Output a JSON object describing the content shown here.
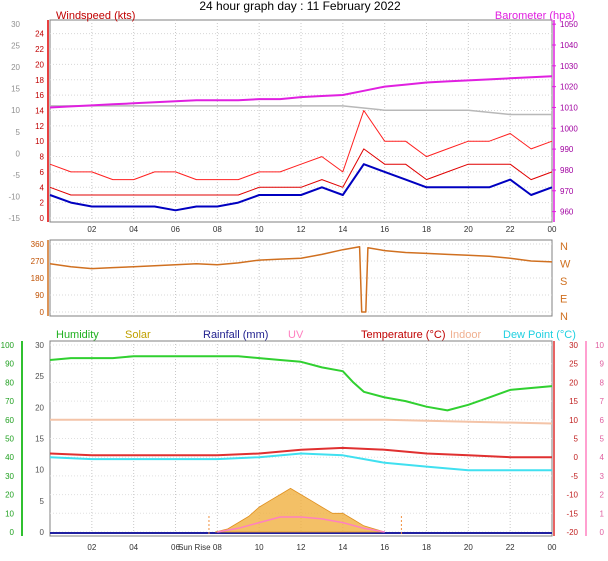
{
  "title": "24 hour graph day : 11 February 2022",
  "colors": {
    "wind": "#e00000",
    "gust": "#ff2020",
    "windAvg": "#0000c0",
    "baro": "#e020e0",
    "temp": "#e03030",
    "indoor": "#f4c4a8",
    "dew": "#40e0f0",
    "humidity": "#30d030",
    "rain": "#2020a0",
    "uv": "#ff80c0",
    "solar": "#f0b040",
    "dir": "#d07020"
  },
  "chart_data": [
    {
      "type": "line",
      "panel": "wind-baro",
      "left_axis_label": "Windspeed (kts)",
      "right_axis_label": "Barometer (hpa)",
      "y_left_ticks": [
        "24",
        "22",
        "20",
        "18",
        "16",
        "14",
        "12",
        "10",
        "8",
        "6",
        "4",
        "2",
        "0"
      ],
      "y_left_range": [
        0,
        25
      ],
      "y_outer_ticks": [
        "30",
        "25",
        "20",
        "15",
        "10",
        "5",
        "0",
        "-5",
        "-10",
        "-15"
      ],
      "y_right_ticks": [
        "1050",
        "1040",
        "1030",
        "1020",
        "1010",
        "1000",
        "990",
        "980",
        "970",
        "960"
      ],
      "y_right_range": [
        955,
        1052
      ],
      "x_ticks": [
        "02",
        "04",
        "06",
        "08",
        "10",
        "12",
        "14",
        "16",
        "18",
        "20",
        "22",
        "00"
      ],
      "grid": true,
      "series": [
        {
          "name": "Barometer (hpa)",
          "key": "baro",
          "x": [
            0,
            1,
            2,
            3,
            4,
            5,
            6,
            7,
            8,
            9,
            10,
            11,
            12,
            13,
            14,
            15,
            16,
            17,
            18,
            19,
            20,
            21,
            22,
            23,
            24
          ],
          "values": [
            1010,
            1010.5,
            1011,
            1011.5,
            1012,
            1012.5,
            1013,
            1013.5,
            1013.5,
            1013.5,
            1014,
            1014,
            1015,
            1015.5,
            1016,
            1018,
            1020,
            1021,
            1022,
            1022.5,
            1023,
            1023.5,
            1024,
            1024.5,
            1025
          ]
        },
        {
          "name": "Gust",
          "key": "gust",
          "x": [
            0,
            1,
            2,
            3,
            4,
            5,
            6,
            7,
            8,
            9,
            10,
            11,
            12,
            13,
            14,
            15,
            16,
            17,
            18,
            19,
            20,
            21,
            22,
            23,
            24
          ],
          "values": [
            7,
            6,
            6,
            5,
            5,
            6,
            6,
            5,
            5,
            5,
            6,
            6,
            7,
            8,
            6,
            14,
            10,
            10,
            8,
            9,
            10,
            10,
            11,
            9,
            10
          ]
        },
        {
          "name": "Wind",
          "key": "wind",
          "x": [
            0,
            1,
            2,
            3,
            4,
            5,
            6,
            7,
            8,
            9,
            10,
            11,
            12,
            13,
            14,
            15,
            16,
            17,
            18,
            19,
            20,
            21,
            22,
            23,
            24
          ],
          "values": [
            4,
            3,
            3,
            3,
            3,
            3,
            3,
            3,
            3,
            3,
            4,
            4,
            4,
            5,
            4,
            9,
            7,
            7,
            5,
            6,
            7,
            7,
            7,
            5,
            6
          ]
        },
        {
          "name": "Average wind",
          "key": "windAvg",
          "x": [
            0,
            1,
            2,
            3,
            4,
            5,
            6,
            7,
            8,
            9,
            10,
            11,
            12,
            13,
            14,
            15,
            16,
            17,
            18,
            19,
            20,
            21,
            22,
            23,
            24
          ],
          "values": [
            3,
            2,
            1.5,
            1.5,
            1.5,
            1.5,
            1,
            1.5,
            1.5,
            2,
            3,
            3,
            3,
            4,
            3,
            7,
            6,
            5,
            4,
            4,
            4,
            4,
            5,
            3,
            4
          ]
        },
        {
          "name": "Outer scale series",
          "key": "grey",
          "x": [
            0,
            2,
            4,
            6,
            8,
            10,
            12,
            14,
            16,
            18,
            20,
            22,
            24
          ],
          "values": [
            11,
            11,
            11,
            11,
            11,
            11,
            11,
            11,
            10,
            10,
            10,
            9,
            9
          ]
        }
      ]
    },
    {
      "type": "line",
      "panel": "direction",
      "y_left_ticks": [
        "360",
        "270",
        "180",
        "90",
        "0"
      ],
      "y_left_range": [
        0,
        360
      ],
      "y_right_ticks": [
        "N",
        "W",
        "S",
        "E",
        "N"
      ],
      "x": [
        0,
        1,
        2,
        3,
        4,
        5,
        6,
        7,
        8,
        9,
        10,
        11,
        12,
        13,
        14,
        14.8,
        14.9,
        15.1,
        15.2,
        16,
        17,
        18,
        19,
        20,
        21,
        22,
        23,
        24
      ],
      "values": [
        255,
        240,
        230,
        235,
        240,
        245,
        250,
        255,
        250,
        260,
        275,
        280,
        285,
        305,
        330,
        345,
        0,
        0,
        340,
        325,
        315,
        310,
        305,
        300,
        295,
        285,
        270,
        265
      ]
    },
    {
      "type": "line",
      "panel": "temperature-humidity",
      "legend": [
        "Humidity",
        "Solar",
        "Rainfall (mm)",
        "UV",
        "Temperature (°C)",
        "Indoor",
        "Dew Point (°C)"
      ],
      "y_humidity_ticks": [
        "100",
        "90",
        "80",
        "70",
        "60",
        "50",
        "40",
        "30",
        "20",
        "10",
        "0"
      ],
      "y_solar_ticks": [
        "30",
        "25",
        "20",
        "15",
        "10",
        "5",
        "0"
      ],
      "y_temp_ticks": [
        "30",
        "25",
        "20",
        "15",
        "10",
        "5",
        "0",
        "-5",
        "-10",
        "-15",
        "-20"
      ],
      "y_uv_ticks": [
        "10",
        "9",
        "8",
        "7",
        "6",
        "5",
        "4",
        "3",
        "2",
        "1",
        "0"
      ],
      "x_ticks": [
        "02",
        "04",
        "06",
        "Sun Rise",
        "08",
        "10",
        "12",
        "14",
        "16",
        "18",
        "20",
        "22",
        "00"
      ],
      "series": [
        {
          "name": "Humidity",
          "key": "humidity",
          "x": [
            0,
            1,
            2,
            3,
            4,
            5,
            6,
            7,
            8,
            9,
            10,
            11,
            12,
            13,
            14,
            14.5,
            15,
            16,
            17,
            18,
            19,
            20,
            21,
            22,
            23,
            24
          ],
          "values": [
            92,
            93,
            93,
            93,
            94,
            94,
            94,
            94,
            94,
            94,
            93,
            92,
            91,
            88,
            86,
            80,
            75,
            72,
            70,
            67,
            65,
            68,
            72,
            76,
            77,
            78
          ]
        },
        {
          "name": "Indoor",
          "key": "indoor",
          "x": [
            0,
            4,
            8,
            12,
            16,
            20,
            24
          ],
          "values": [
            10,
            10,
            10,
            10,
            10,
            9.5,
            9
          ]
        },
        {
          "name": "Temperature (°C)",
          "key": "temp",
          "x": [
            0,
            2,
            4,
            6,
            8,
            10,
            12,
            14,
            16,
            18,
            20,
            22,
            24
          ],
          "values": [
            1,
            0.5,
            0.5,
            0.5,
            0.5,
            1,
            2,
            2.5,
            2,
            1,
            0.5,
            0,
            0
          ]
        },
        {
          "name": "Dew Point (°C)",
          "key": "dew",
          "x": [
            0,
            2,
            4,
            6,
            8,
            10,
            12,
            14,
            16,
            18,
            20,
            22,
            24
          ],
          "values": [
            0,
            -0.5,
            -0.5,
            -0.5,
            -0.5,
            0,
            1,
            0.5,
            -1.5,
            -2.5,
            -3.5,
            -3.5,
            -3.5
          ]
        },
        {
          "name": "Solar",
          "key": "solar",
          "x": [
            7.9,
            8.5,
            9,
            9.5,
            10,
            10.5,
            11,
            11.5,
            12,
            12.5,
            13,
            13.5,
            14,
            14.5,
            15,
            15.5,
            16
          ],
          "values": [
            0,
            0.5,
            1.5,
            2.5,
            4,
            5,
            6,
            7,
            6,
            5,
            4,
            3,
            3,
            2,
            1,
            0.5,
            0
          ]
        },
        {
          "name": "UV",
          "key": "uv",
          "x": [
            8,
            9,
            10,
            11,
            12,
            13,
            14,
            15,
            16
          ],
          "values": [
            0,
            0.2,
            0.5,
            0.8,
            0.8,
            0.7,
            0.5,
            0.2,
            0
          ]
        }
      ]
    }
  ]
}
